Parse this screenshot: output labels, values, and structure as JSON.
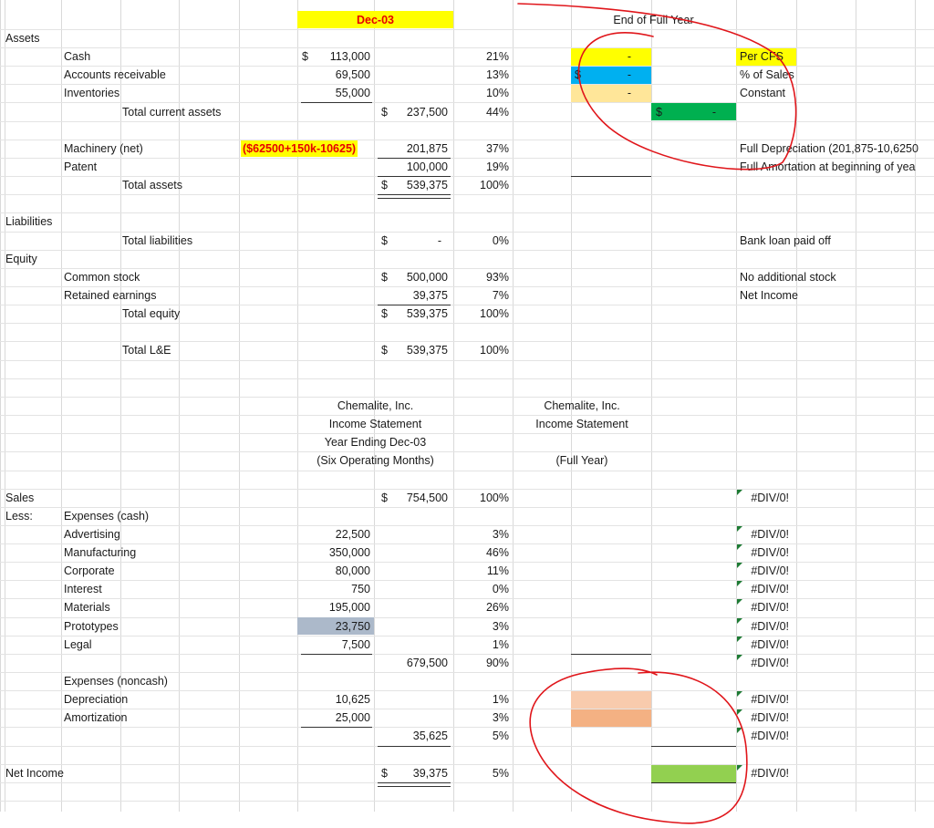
{
  "header": {
    "period_label": "Dec-03",
    "full_year_label": "End of Full Year"
  },
  "balance": {
    "assets_label": "Assets",
    "cash": {
      "label": "Cash",
      "currency": "$",
      "value": "113,000",
      "pct": "21%"
    },
    "ar": {
      "label": "Accounts receivable",
      "value": "69,500",
      "pct": "13%"
    },
    "inventories": {
      "label": "Inventories",
      "value": "55,000",
      "pct": "10%"
    },
    "total_current": {
      "label": "Total current assets",
      "currency": "$",
      "value": "237,500",
      "pct": "44%"
    },
    "machinery": {
      "label": "Machinery (net)",
      "calc": "($62500+150k-10625)",
      "value": "201,875",
      "pct": "37%"
    },
    "patent": {
      "label": "Patent",
      "value": "100,000",
      "pct": "19%"
    },
    "total_assets": {
      "label": "Total assets",
      "currency": "$",
      "value": "539,375",
      "pct": "100%"
    },
    "liabilities_label": "Liabilities",
    "total_liab": {
      "label": "Total liabilities",
      "currency": "$",
      "value": "-",
      "pct": "0%"
    },
    "equity_label": "Equity",
    "common": {
      "label": "Common stock",
      "currency": "$",
      "value": "500,000",
      "pct": "93%"
    },
    "retained": {
      "label": "Retained earnings",
      "value": "39,375",
      "pct": "7%"
    },
    "total_equity": {
      "label": "Total equity",
      "currency": "$",
      "value": "539,375",
      "pct": "100%"
    },
    "total_le": {
      "label": "Total L&E",
      "currency": "$",
      "value": "539,375",
      "pct": "100%"
    }
  },
  "full_year_cells": {
    "cash": {
      "value": "-"
    },
    "ar": {
      "currency": "$",
      "value": "-"
    },
    "inv": {
      "value": "-"
    },
    "total_current": {
      "currency": "$",
      "value": "-"
    }
  },
  "notes": {
    "cash": "Per CFS",
    "ar": "% of Sales",
    "inv": "Constant",
    "machinery": "Full Depreciation (201,875-10,6250",
    "patent": "Full Amortation at beginning of yea",
    "liab": "Bank loan paid off",
    "common": "No additional stock",
    "retained": "Net Income"
  },
  "income_left": {
    "line1": "Chemalite, Inc.",
    "line2": "Income Statement",
    "line3": "Year Ending Dec-03",
    "line4": "(Six Operating Months)"
  },
  "income_right": {
    "line1": "Chemalite, Inc.",
    "line2": "Income Statement",
    "line4": "(Full Year)"
  },
  "income": {
    "sales": {
      "label": "Sales",
      "currency": "$",
      "value": "754,500",
      "pct": "100%",
      "full": "#DIV/0!"
    },
    "less_label": "Less:",
    "cash_exp_label": "Expenses (cash)",
    "advertising": {
      "label": "Advertising",
      "value": "22,500",
      "pct": "3%",
      "full": "#DIV/0!"
    },
    "manufacturing": {
      "label": "Manufacturing",
      "value": "350,000",
      "pct": "46%",
      "full": "#DIV/0!"
    },
    "corporate": {
      "label": "Corporate",
      "value": "80,000",
      "pct": "11%",
      "full": "#DIV/0!"
    },
    "interest": {
      "label": "Interest",
      "value": "750",
      "pct": "0%",
      "full": "#DIV/0!"
    },
    "materials": {
      "label": "Materials",
      "value": "195,000",
      "pct": "26%",
      "full": "#DIV/0!"
    },
    "prototypes": {
      "label": "Prototypes",
      "value": "23,750",
      "pct": "3%",
      "full": "#DIV/0!"
    },
    "legal": {
      "label": "Legal",
      "value": "7,500",
      "pct": "1%",
      "full": "#DIV/0!"
    },
    "cash_total": {
      "value": "679,500",
      "pct": "90%",
      "full": "#DIV/0!"
    },
    "noncash_label": "Expenses (noncash)",
    "depreciation": {
      "label": "Depreciation",
      "value": "10,625",
      "pct": "1%",
      "full": "#DIV/0!"
    },
    "amortization": {
      "label": "Amortization",
      "value": "25,000",
      "pct": "3%",
      "full": "#DIV/0!"
    },
    "noncash_total": {
      "value": "35,625",
      "pct": "5%",
      "full": "#DIV/0!"
    },
    "net_income": {
      "label": "Net Income",
      "currency": "$",
      "value": "39,375",
      "pct": "5%",
      "full": "#DIV/0!"
    }
  },
  "colors": {
    "yellow": "#ffff00",
    "blue": "#00b0f0",
    "peach": "#ffe699",
    "green": "#00b050",
    "lightgreen": "#92d050",
    "salmon_light": "#f8cbad",
    "salmon": "#f4b183",
    "grey_blue": "#acb9ca",
    "pen_red": "#e0161b"
  }
}
